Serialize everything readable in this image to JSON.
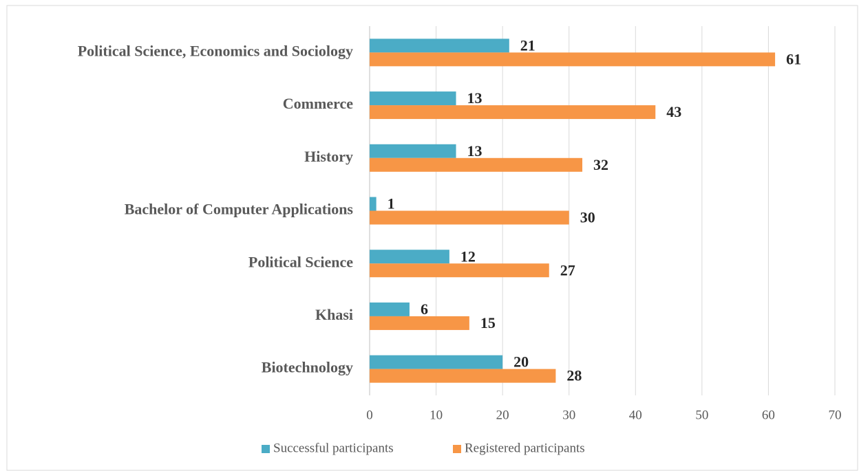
{
  "chart_data": {
    "type": "barh",
    "categories": [
      "Political Science, Economics and Sociology",
      "Commerce",
      "History",
      "Bachelor of Computer Applications",
      "Political Science",
      "Khasi",
      "Biotechnology"
    ],
    "series": [
      {
        "name": "Successful participants",
        "color": "#4bacc6",
        "values": [
          21,
          13,
          13,
          1,
          12,
          6,
          20
        ]
      },
      {
        "name": "Registered participants",
        "color": "#f79646",
        "values": [
          61,
          43,
          32,
          30,
          27,
          15,
          28
        ]
      }
    ],
    "xlim": [
      0,
      70
    ],
    "xticks": [
      0,
      10,
      20,
      30,
      40,
      50,
      60,
      70
    ],
    "grid": true,
    "legend": "bottom"
  }
}
